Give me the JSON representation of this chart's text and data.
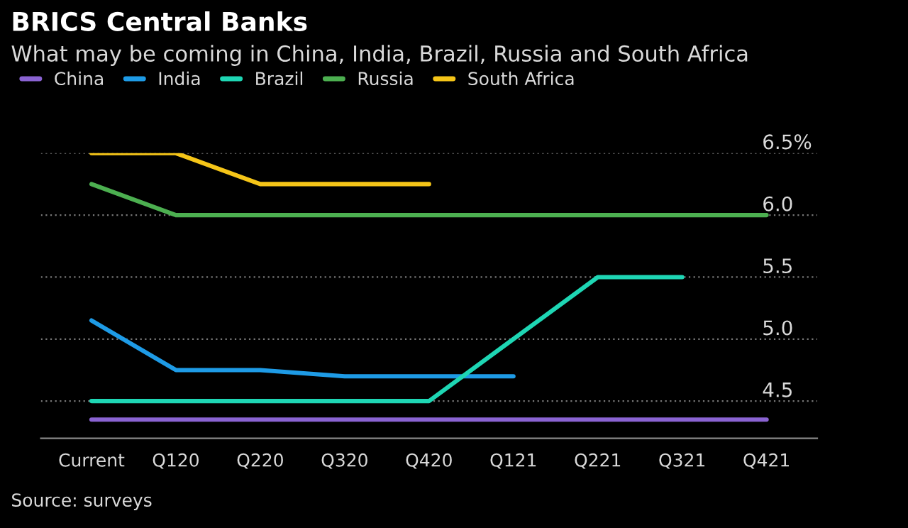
{
  "chart_data": {
    "type": "line",
    "title": "BRICS Central Banks",
    "subtitle": "What may be coming in China, India, Brazil, Russia and South Africa",
    "categories": [
      "Current",
      "Q120",
      "Q220",
      "Q320",
      "Q420",
      "Q121",
      "Q221",
      "Q321",
      "Q421"
    ],
    "series": [
      {
        "name": "China",
        "color": "#8a63d2",
        "values": [
          4.35,
          4.35,
          4.35,
          4.35,
          4.35,
          4.35,
          4.35,
          4.35,
          4.35
        ]
      },
      {
        "name": "India",
        "color": "#1e9be6",
        "values": [
          5.15,
          4.75,
          4.75,
          4.7,
          4.7,
          4.7,
          null,
          null,
          null
        ]
      },
      {
        "name": "Brazil",
        "color": "#1ed6b4",
        "values": [
          4.5,
          4.5,
          4.5,
          4.5,
          4.5,
          5.0,
          5.5,
          5.5,
          null
        ]
      },
      {
        "name": "Russia",
        "color": "#4caf50",
        "values": [
          6.25,
          6.0,
          6.0,
          6.0,
          6.0,
          6.0,
          6.0,
          6.0,
          6.0
        ]
      },
      {
        "name": "South Africa",
        "color": "#f5c518",
        "values": [
          6.5,
          6.5,
          6.25,
          6.25,
          6.25,
          null,
          null,
          null,
          null
        ]
      }
    ],
    "ylim": [
      4.2,
      6.5
    ],
    "yticks": [
      4.5,
      {
        "value": 5,
        "label": "5.0"
      },
      5.5,
      {
        "value": 6,
        "label": "6.0"
      },
      {
        "value": 6.5,
        "label": "6.5%"
      }
    ],
    "grid": "y",
    "legend": "top left",
    "line_style": "solid",
    "marker": "none",
    "annotations": [
      "Source: surveys"
    ]
  }
}
